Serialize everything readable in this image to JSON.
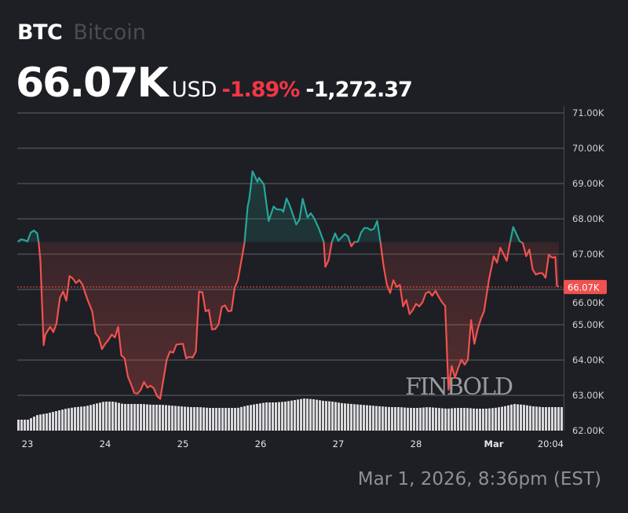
{
  "header": {
    "symbol": "BTC",
    "name": "Bitcoin",
    "price": "66.07K",
    "currency": "USD",
    "change_percent": "-1.89%",
    "change_value": "-1,272.37"
  },
  "timestamp": "Mar 1, 2026, 8:36pm (EST)",
  "watermark": "FINBOLD",
  "colors": {
    "background": "#1d1f24",
    "up": "#26a69a",
    "down": "#f0524f",
    "negative_text": "#f23645",
    "grid": "#5f6166",
    "volume": "#d9d9dc"
  },
  "chart_data": {
    "type": "line",
    "title": "",
    "xlabel": "",
    "ylabel": "",
    "ylim": [
      62000,
      71000
    ],
    "y_ticks": [
      "71.00K",
      "70.00K",
      "69.00K",
      "68.00K",
      "67.00K",
      "66.00K",
      "65.00K",
      "64.00K",
      "63.00K",
      "62.00K"
    ],
    "x_ticks": [
      {
        "label": "23",
        "time": "2026-02-23T00:00"
      },
      {
        "label": "24",
        "time": "2026-02-24T00:00"
      },
      {
        "label": "25",
        "time": "2026-02-25T00:00"
      },
      {
        "label": "26",
        "time": "2026-02-26T00:00"
      },
      {
        "label": "27",
        "time": "2026-02-27T00:00"
      },
      {
        "label": "28",
        "time": "2026-02-28T00:00"
      },
      {
        "label": "Mar",
        "time": "2026-03-01T00:00"
      },
      {
        "label": "20:04",
        "time": "2026-03-01T20:04"
      }
    ],
    "grid": true,
    "baseline_previous_close": 67342,
    "last_price_label": "66.07K",
    "last_price": 66070,
    "series": [
      {
        "points": [
          [
            "2026-02-22T21:00",
            67350
          ],
          [
            "2026-02-22T22:00",
            67420
          ],
          [
            "2026-02-22T23:00",
            67400
          ],
          [
            "2026-02-23T00:00",
            67360
          ],
          [
            "2026-02-23T01:00",
            67610
          ],
          [
            "2026-02-23T02:00",
            67670
          ],
          [
            "2026-02-23T03:00",
            67590
          ],
          [
            "2026-02-23T03:30",
            67310
          ],
          [
            "2026-02-23T04:00",
            66790
          ],
          [
            "2026-02-23T05:00",
            64420
          ],
          [
            "2026-02-23T05:30",
            64720
          ],
          [
            "2026-02-23T07:00",
            64940
          ],
          [
            "2026-02-23T08:00",
            64790
          ],
          [
            "2026-02-23T09:00",
            65050
          ],
          [
            "2026-02-23T10:00",
            65760
          ],
          [
            "2026-02-23T11:00",
            65940
          ],
          [
            "2026-02-23T12:00",
            65680
          ],
          [
            "2026-02-23T13:00",
            66380
          ],
          [
            "2026-02-23T14:00",
            66310
          ],
          [
            "2026-02-23T15:00",
            66180
          ],
          [
            "2026-02-23T16:00",
            66270
          ],
          [
            "2026-02-23T17:00",
            66130
          ],
          [
            "2026-02-23T18:30",
            65720
          ],
          [
            "2026-02-23T20:00",
            65380
          ],
          [
            "2026-02-23T21:00",
            64760
          ],
          [
            "2026-02-23T22:00",
            64640
          ],
          [
            "2026-02-23T23:00",
            64310
          ],
          [
            "2026-02-24T00:00",
            64460
          ],
          [
            "2026-02-24T01:00",
            64570
          ],
          [
            "2026-02-24T02:00",
            64720
          ],
          [
            "2026-02-24T03:00",
            64640
          ],
          [
            "2026-02-24T04:00",
            64940
          ],
          [
            "2026-02-24T05:00",
            64130
          ],
          [
            "2026-02-24T06:00",
            64050
          ],
          [
            "2026-02-24T07:00",
            63530
          ],
          [
            "2026-02-24T08:00",
            63310
          ],
          [
            "2026-02-24T09:00",
            63070
          ],
          [
            "2026-02-24T10:00",
            63050
          ],
          [
            "2026-02-24T11:00",
            63160
          ],
          [
            "2026-02-24T12:00",
            63380
          ],
          [
            "2026-02-24T13:00",
            63220
          ],
          [
            "2026-02-24T14:00",
            63270
          ],
          [
            "2026-02-24T15:00",
            63200
          ],
          [
            "2026-02-24T16:00",
            62980
          ],
          [
            "2026-02-24T17:00",
            62900
          ],
          [
            "2026-02-24T18:00",
            63460
          ],
          [
            "2026-02-24T19:00",
            64010
          ],
          [
            "2026-02-24T20:00",
            64240
          ],
          [
            "2026-02-24T21:00",
            64210
          ],
          [
            "2026-02-24T22:00",
            64440
          ],
          [
            "2026-02-25T00:00",
            64460
          ],
          [
            "2026-02-25T01:00",
            64050
          ],
          [
            "2026-02-25T02:00",
            64090
          ],
          [
            "2026-02-25T03:00",
            64070
          ],
          [
            "2026-02-25T04:00",
            64240
          ],
          [
            "2026-02-25T05:00",
            65940
          ],
          [
            "2026-02-25T06:00",
            65920
          ],
          [
            "2026-02-25T07:00",
            65380
          ],
          [
            "2026-02-25T08:00",
            65420
          ],
          [
            "2026-02-25T09:00",
            64870
          ],
          [
            "2026-02-25T10:00",
            64880
          ],
          [
            "2026-02-25T11:00",
            65010
          ],
          [
            "2026-02-25T12:00",
            65500
          ],
          [
            "2026-02-25T13:00",
            65550
          ],
          [
            "2026-02-25T14:00",
            65380
          ],
          [
            "2026-02-25T15:00",
            65400
          ],
          [
            "2026-02-25T16:00",
            66050
          ],
          [
            "2026-02-25T17:00",
            66270
          ],
          [
            "2026-02-25T19:00",
            67310
          ],
          [
            "2026-02-25T20:00",
            68350
          ],
          [
            "2026-02-25T20:30",
            68570
          ],
          [
            "2026-02-25T21:30",
            69350
          ],
          [
            "2026-02-25T23:00",
            69050
          ],
          [
            "2026-02-25T23:30",
            69160
          ],
          [
            "2026-02-26T01:00",
            68980
          ],
          [
            "2026-02-26T02:30",
            67940
          ],
          [
            "2026-02-26T04:00",
            68350
          ],
          [
            "2026-02-26T05:00",
            68270
          ],
          [
            "2026-02-26T06:30",
            68260
          ],
          [
            "2026-02-26T07:00",
            68200
          ],
          [
            "2026-02-26T08:00",
            68580
          ],
          [
            "2026-02-26T09:00",
            68380
          ],
          [
            "2026-02-26T11:00",
            67840
          ],
          [
            "2026-02-26T12:00",
            67980
          ],
          [
            "2026-02-26T13:00",
            68570
          ],
          [
            "2026-02-26T14:30",
            68040
          ],
          [
            "2026-02-26T15:30",
            68160
          ],
          [
            "2026-02-26T16:30",
            68020
          ],
          [
            "2026-02-26T18:00",
            67720
          ],
          [
            "2026-02-26T19:30",
            67350
          ],
          [
            "2026-02-26T20:00",
            66640
          ],
          [
            "2026-02-26T21:00",
            66830
          ],
          [
            "2026-02-26T22:00",
            67350
          ],
          [
            "2026-02-26T23:00",
            67590
          ],
          [
            "2026-02-27T00:00",
            67380
          ],
          [
            "2026-02-27T02:00",
            67570
          ],
          [
            "2026-02-27T03:00",
            67500
          ],
          [
            "2026-02-27T04:00",
            67220
          ],
          [
            "2026-02-27T05:00",
            67350
          ],
          [
            "2026-02-27T06:00",
            67350
          ],
          [
            "2026-02-27T07:00",
            67610
          ],
          [
            "2026-02-27T08:00",
            67740
          ],
          [
            "2026-02-27T09:00",
            67740
          ],
          [
            "2026-02-27T10:00",
            67680
          ],
          [
            "2026-02-27T11:00",
            67720
          ],
          [
            "2026-02-27T12:00",
            67940
          ],
          [
            "2026-02-27T13:00",
            67350
          ],
          [
            "2026-02-27T14:00",
            66640
          ],
          [
            "2026-02-27T15:00",
            66130
          ],
          [
            "2026-02-27T16:00",
            65900
          ],
          [
            "2026-02-27T17:00",
            66260
          ],
          [
            "2026-02-27T18:00",
            66070
          ],
          [
            "2026-02-27T19:00",
            66130
          ],
          [
            "2026-02-27T20:00",
            65520
          ],
          [
            "2026-02-27T21:00",
            65700
          ],
          [
            "2026-02-27T22:00",
            65300
          ],
          [
            "2026-02-27T23:00",
            65420
          ],
          [
            "2026-02-28T00:00",
            65590
          ],
          [
            "2026-02-28T01:00",
            65520
          ],
          [
            "2026-02-28T02:00",
            65640
          ],
          [
            "2026-02-28T03:00",
            65890
          ],
          [
            "2026-02-28T04:00",
            65940
          ],
          [
            "2026-02-28T05:00",
            65820
          ],
          [
            "2026-02-28T06:00",
            65960
          ],
          [
            "2026-02-28T07:00",
            65790
          ],
          [
            "2026-02-28T08:00",
            65640
          ],
          [
            "2026-02-28T09:00",
            65530
          ],
          [
            "2026-02-28T10:00",
            63160
          ],
          [
            "2026-02-28T11:00",
            63830
          ],
          [
            "2026-02-28T12:00",
            63500
          ],
          [
            "2026-02-28T13:00",
            63770
          ],
          [
            "2026-02-28T14:00",
            64010
          ],
          [
            "2026-02-28T15:00",
            63870
          ],
          [
            "2026-02-28T16:00",
            64010
          ],
          [
            "2026-02-28T17:00",
            65130
          ],
          [
            "2026-02-28T18:00",
            64460
          ],
          [
            "2026-02-28T19:00",
            64870
          ],
          [
            "2026-02-28T20:00",
            65160
          ],
          [
            "2026-02-28T21:00",
            65380
          ],
          [
            "2026-02-28T22:30",
            66270
          ],
          [
            "2026-03-01T00:00",
            66940
          ],
          [
            "2026-03-01T01:00",
            66760
          ],
          [
            "2026-03-01T02:00",
            67180
          ],
          [
            "2026-03-01T03:00",
            67000
          ],
          [
            "2026-03-01T04:00",
            66810
          ],
          [
            "2026-03-01T05:00",
            67310
          ],
          [
            "2026-03-01T06:00",
            67770
          ],
          [
            "2026-03-01T07:00",
            67570
          ],
          [
            "2026-03-01T08:00",
            67370
          ],
          [
            "2026-03-01T09:00",
            67310
          ],
          [
            "2026-03-01T10:00",
            66940
          ],
          [
            "2026-03-01T11:00",
            67130
          ],
          [
            "2026-03-01T12:00",
            66570
          ],
          [
            "2026-03-01T13:00",
            66420
          ],
          [
            "2026-03-01T14:00",
            66460
          ],
          [
            "2026-03-01T15:00",
            66460
          ],
          [
            "2026-03-01T16:00",
            66330
          ],
          [
            "2026-03-01T17:00",
            66980
          ],
          [
            "2026-03-01T18:00",
            66900
          ],
          [
            "2026-03-01T19:00",
            66920
          ],
          [
            "2026-03-01T19:30",
            66110
          ],
          [
            "2026-03-01T20:04",
            66070
          ]
        ]
      }
    ],
    "volume_relative": [
      14,
      14,
      20,
      22,
      25,
      28,
      30,
      31,
      34,
      37,
      37,
      34,
      34,
      34,
      33,
      33,
      32,
      31,
      30,
      30,
      29,
      29,
      29,
      29,
      32,
      34,
      36,
      36,
      37,
      39,
      41,
      40,
      38,
      37,
      35,
      34,
      33,
      32,
      31,
      30,
      30,
      29,
      29,
      30,
      29,
      28,
      29,
      29,
      28,
      28,
      29,
      31,
      34,
      33,
      31,
      30,
      30,
      30
    ]
  }
}
